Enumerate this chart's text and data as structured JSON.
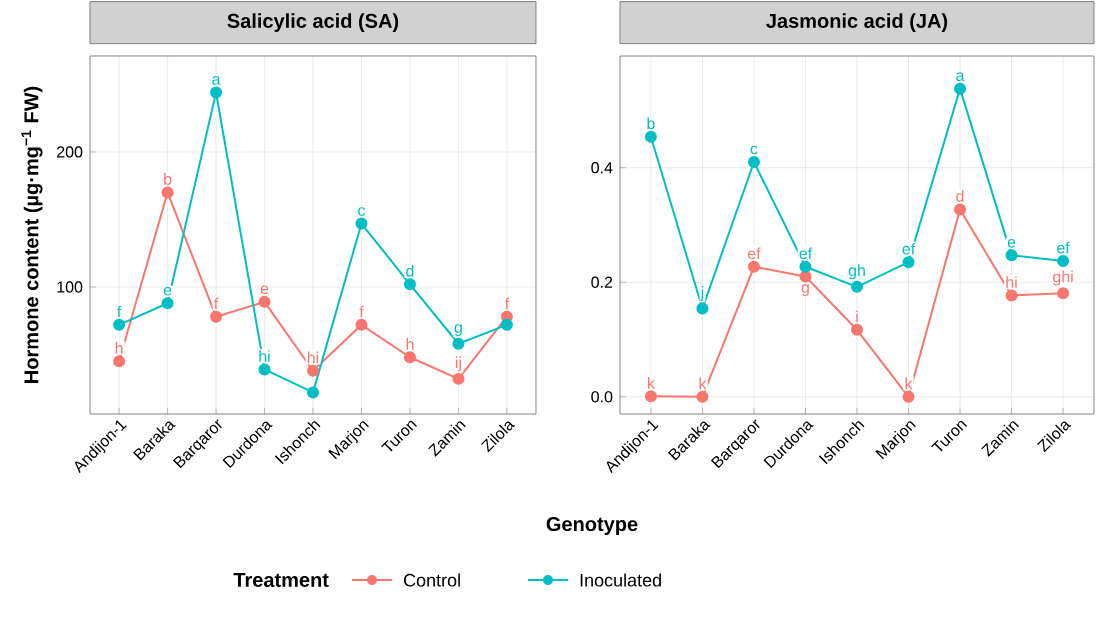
{
  "chart_data": [
    {
      "type": "line",
      "title": "Salicylic acid (SA)",
      "xlabel": "Genotype",
      "ylabel": "Hormone content (µg·mg$^{−1}$ FW)",
      "legend": "bottom",
      "legend_title": "Treatment",
      "grid": true,
      "marker": "circle",
      "categories": [
        "Andijon-1",
        "Baraka",
        "Barqaror",
        "Durdona",
        "Ishonch",
        "Marjon",
        "Turon",
        "Zamin",
        "Zilola"
      ],
      "ylim": [
        6,
        271
      ],
      "yticks": [
        100,
        200
      ],
      "series": [
        {
          "name": "Control",
          "color": "#F8766D",
          "values": [
            45,
            170,
            78,
            89,
            38,
            72,
            48,
            32,
            78
          ],
          "value_labels": [
            "h",
            "b",
            "f",
            "e",
            "hi",
            "f",
            "h",
            "ij",
            "f"
          ]
        },
        {
          "name": "Inoculated",
          "color": "#00BFC4",
          "values": [
            72,
            88,
            244,
            39,
            22,
            147,
            102,
            58,
            72
          ],
          "value_labels": [
            "f",
            "e",
            "a",
            "hi",
            null,
            "c",
            "d",
            "g",
            null
          ]
        }
      ]
    },
    {
      "type": "line",
      "title": "Jasmonic acid (JA)",
      "grid": true,
      "marker": "circle",
      "categories": [
        "Andijon-1",
        "Baraka",
        "Barqaror",
        "Durdona",
        "Ishonch",
        "Marjon",
        "Turon",
        "Zamin",
        "Zilola"
      ],
      "ylim": [
        -0.03,
        0.595
      ],
      "yticks": [
        {
          "value": 0,
          "label": "0.0"
        },
        {
          "value": 0.2,
          "label": "0.2"
        },
        {
          "value": 0.4,
          "label": "0.4"
        }
      ],
      "series": [
        {
          "color": "#F8766D",
          "values": [
            0.001,
            0,
            0.227,
            0.21,
            0.117,
            0,
            0.327,
            0.177,
            0.181
          ],
          "value_labels": [
            "k",
            "k",
            "ef",
            "g",
            "i",
            "k",
            "d",
            "hi",
            "ghi"
          ]
        },
        {
          "color": "#00BFC4",
          "values": [
            0.454,
            0.154,
            0.41,
            0.227,
            0.192,
            0.235,
            0.538,
            0.247,
            0.237
          ],
          "value_labels": [
            "b",
            "j",
            "c",
            "ef",
            "gh",
            "ef",
            "a",
            "e",
            "ef"
          ]
        }
      ]
    }
  ]
}
